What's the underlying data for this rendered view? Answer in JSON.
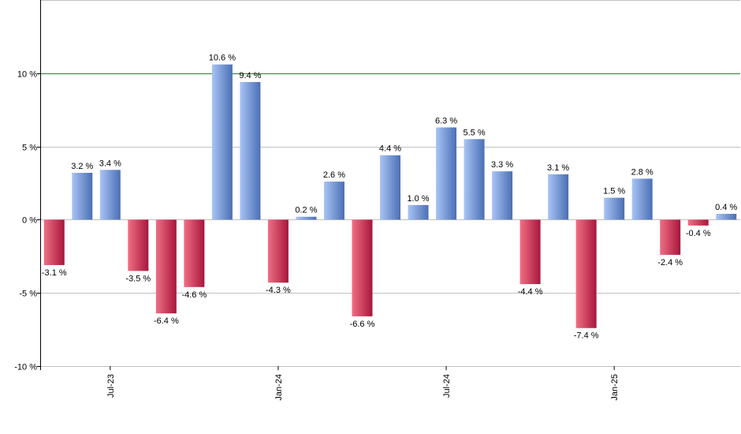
{
  "chart_data": {
    "type": "bar",
    "y_tick_labels": [
      "10 %",
      "5 %",
      "0 %",
      "-5 %",
      "-10 %"
    ],
    "y_ticks": [
      10,
      5,
      0,
      -5,
      -10
    ],
    "ylim": [
      -10,
      15
    ],
    "x_tick_labels": [
      "Jul-23",
      "Jan-24",
      "Jul-24",
      "Jan-25"
    ],
    "x_tick_bar_index": [
      2,
      8,
      14,
      20
    ],
    "reference_line": 10,
    "grid": true,
    "values": [
      -3.1,
      3.2,
      3.4,
      -3.5,
      -6.4,
      -4.6,
      10.6,
      9.4,
      -4.3,
      0.2,
      2.6,
      -6.6,
      4.4,
      1.0,
      6.3,
      5.5,
      3.3,
      -4.4,
      3.1,
      -7.4,
      1.5,
      2.8,
      -2.4,
      -0.4,
      0.4
    ],
    "labels": [
      "-3.1 %",
      "3.2 %",
      "3.4 %",
      "-3.5 %",
      "-6.4 %",
      "-4.6 %",
      "10.6 %",
      "9.4 %",
      "-4.3 %",
      "0.2 %",
      "2.6 %",
      "-6.6 %",
      "4.4 %",
      "1.0 %",
      "6.3 %",
      "5.5 %",
      "3.3 %",
      "-4.4 %",
      "3.1 %",
      "-7.4 %",
      "1.5 %",
      "2.8 %",
      "-2.4 %",
      "-0.4 %",
      "0.4 %"
    ],
    "colors": {
      "positive_light": "#a9c4f5",
      "positive_dark": "#4a6fb4",
      "negative_light": "#ef6f86",
      "negative_dark": "#a8163a",
      "reference_line": "#2e7d32",
      "grid": "#c0c0c0"
    }
  }
}
